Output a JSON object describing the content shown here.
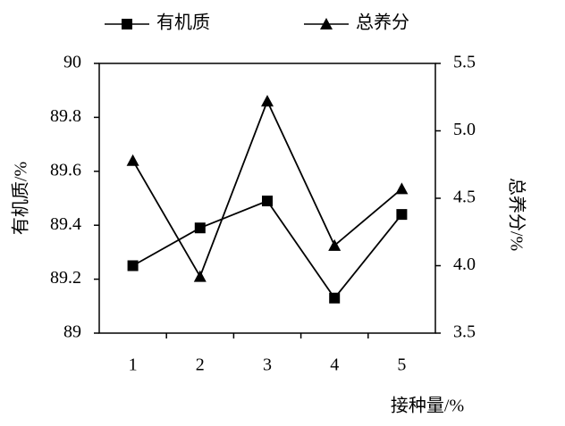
{
  "chart_data": {
    "type": "line",
    "x_label": "接种量/%",
    "y_label": "有机质/%",
    "y2_label": "总养分/%",
    "categories": [
      "1",
      "2",
      "3",
      "4",
      "5"
    ],
    "series": [
      {
        "name": "有机质",
        "color": "#000000",
        "marker": "square",
        "values": [
          89.25,
          89.39,
          89.49,
          89.13,
          89.44
        ]
      },
      {
        "name": "总养分",
        "color": "#000000",
        "marker": "triangle",
        "axis": "y2",
        "values": [
          4.78,
          3.92,
          5.22,
          4.15,
          4.57
        ]
      }
    ],
    "ylim": [
      89,
      90
    ],
    "yticks": [
      89,
      89.2,
      89.4,
      89.6,
      89.8,
      90
    ],
    "y2lim": [
      3.5,
      5.5
    ],
    "y2ticks": [
      3.5,
      {
        "value": 4,
        "label": "4.0"
      },
      4.5,
      {
        "value": 5,
        "label": "5.0"
      },
      5.5
    ],
    "legend": "top"
  }
}
